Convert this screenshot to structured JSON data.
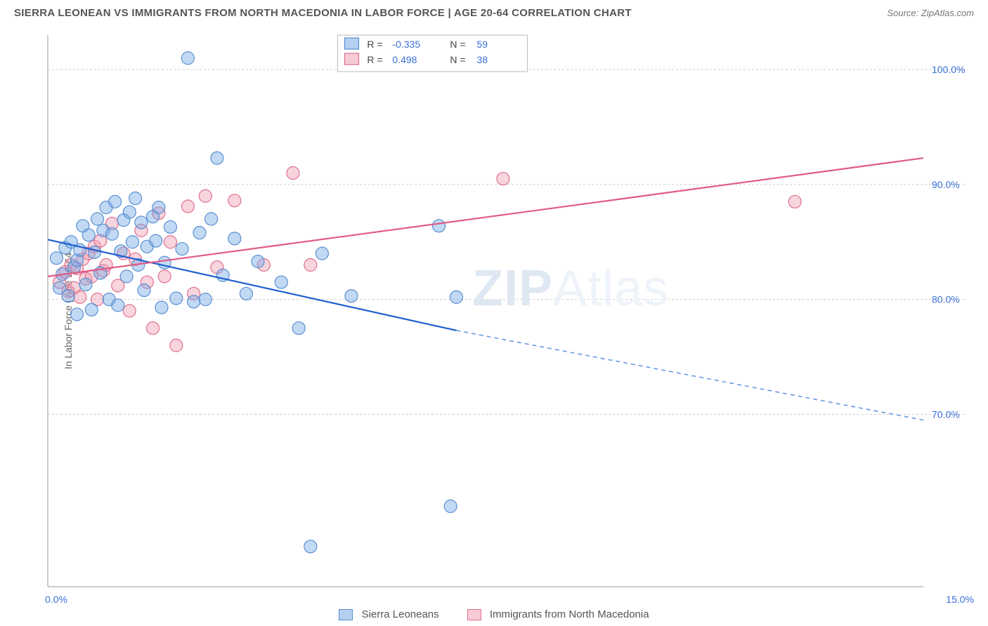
{
  "header": {
    "title": "SIERRA LEONEAN VS IMMIGRANTS FROM NORTH MACEDONIA IN LABOR FORCE | AGE 20-64 CORRELATION CHART",
    "source": "Source: ZipAtlas.com"
  },
  "chart": {
    "type": "scatter",
    "y_axis_label": "In Labor Force | Age 20-64",
    "x_domain": [
      0,
      15
    ],
    "y_domain": [
      55,
      103
    ],
    "x_ticks": [
      "0.0%",
      "15.0%"
    ],
    "y_gridlines": [
      70,
      80,
      90,
      100
    ],
    "y_tick_labels": [
      "70.0%",
      "80.0%",
      "90.0%",
      "100.0%"
    ],
    "background_color": "#ffffff",
    "grid_color": "#cccccc",
    "axis_color": "#999999",
    "tick_color": "#3b6fd6",
    "marker_radius": 9,
    "watermark": {
      "text_bold": "ZIP",
      "text_light": "Atlas",
      "fontsize": 72
    },
    "series": {
      "blue": {
        "label": "Sierra Leoneans",
        "fill": "rgba(120,170,230,0.45)",
        "stroke": "#5a8fd0",
        "R": "-0.335",
        "N": "59",
        "trend": {
          "solid_from": [
            0.0,
            85.2
          ],
          "solid_to": [
            7.0,
            77.3
          ],
          "dash_to": [
            15.0,
            69.5
          ],
          "color": "#1f5fd0"
        },
        "points": [
          [
            0.15,
            83.6
          ],
          [
            0.2,
            81.0
          ],
          [
            0.25,
            82.2
          ],
          [
            0.3,
            84.5
          ],
          [
            0.35,
            80.3
          ],
          [
            0.4,
            85.0
          ],
          [
            0.45,
            82.8
          ],
          [
            0.5,
            83.4
          ],
          [
            0.5,
            78.7
          ],
          [
            0.55,
            84.3
          ],
          [
            0.6,
            86.4
          ],
          [
            0.65,
            81.3
          ],
          [
            0.7,
            85.6
          ],
          [
            0.75,
            79.1
          ],
          [
            0.8,
            84.1
          ],
          [
            0.85,
            87.0
          ],
          [
            0.9,
            82.3
          ],
          [
            0.95,
            86.0
          ],
          [
            1.0,
            88.0
          ],
          [
            1.05,
            80.0
          ],
          [
            1.1,
            85.7
          ],
          [
            1.15,
            88.5
          ],
          [
            1.2,
            79.5
          ],
          [
            1.25,
            84.2
          ],
          [
            1.3,
            86.9
          ],
          [
            1.35,
            82.0
          ],
          [
            1.4,
            87.6
          ],
          [
            1.45,
            85.0
          ],
          [
            1.5,
            88.8
          ],
          [
            1.55,
            83.0
          ],
          [
            1.6,
            86.7
          ],
          [
            1.65,
            80.8
          ],
          [
            1.7,
            84.6
          ],
          [
            1.8,
            87.2
          ],
          [
            1.85,
            85.1
          ],
          [
            1.9,
            88.0
          ],
          [
            1.95,
            79.3
          ],
          [
            2.0,
            83.2
          ],
          [
            2.1,
            86.3
          ],
          [
            2.2,
            80.1
          ],
          [
            2.3,
            84.4
          ],
          [
            2.4,
            101.0
          ],
          [
            2.5,
            79.8
          ],
          [
            2.6,
            85.8
          ],
          [
            2.7,
            80.0
          ],
          [
            2.8,
            87.0
          ],
          [
            2.9,
            92.3
          ],
          [
            3.0,
            82.1
          ],
          [
            3.2,
            85.3
          ],
          [
            3.4,
            80.5
          ],
          [
            3.6,
            83.3
          ],
          [
            4.0,
            81.5
          ],
          [
            4.3,
            77.5
          ],
          [
            4.5,
            58.5
          ],
          [
            4.7,
            84.0
          ],
          [
            5.2,
            80.3
          ],
          [
            6.7,
            86.4
          ],
          [
            7.0,
            80.2
          ],
          [
            6.9,
            62.0
          ]
        ]
      },
      "pink": {
        "label": "Immigrants from North Macedonia",
        "fill": "rgba(240,160,180,0.45)",
        "stroke": "#e06f8f",
        "R": "0.498",
        "N": "38",
        "trend": {
          "from": [
            0.0,
            82.0
          ],
          "to": [
            15.0,
            92.3
          ],
          "color": "#e05a85"
        },
        "points": [
          [
            0.2,
            81.5
          ],
          [
            0.3,
            82.4
          ],
          [
            0.35,
            80.7
          ],
          [
            0.4,
            83.0
          ],
          [
            0.45,
            81.0
          ],
          [
            0.5,
            82.7
          ],
          [
            0.55,
            80.2
          ],
          [
            0.6,
            83.5
          ],
          [
            0.65,
            81.8
          ],
          [
            0.7,
            84.0
          ],
          [
            0.75,
            82.0
          ],
          [
            0.8,
            84.6
          ],
          [
            0.85,
            80.0
          ],
          [
            0.9,
            85.1
          ],
          [
            0.95,
            82.5
          ],
          [
            1.0,
            83.0
          ],
          [
            1.1,
            86.6
          ],
          [
            1.2,
            81.2
          ],
          [
            1.3,
            84.0
          ],
          [
            1.4,
            79.0
          ],
          [
            1.5,
            83.5
          ],
          [
            1.6,
            86.0
          ],
          [
            1.7,
            81.5
          ],
          [
            1.8,
            77.5
          ],
          [
            1.9,
            87.5
          ],
          [
            2.0,
            82.0
          ],
          [
            2.1,
            85.0
          ],
          [
            2.2,
            76.0
          ],
          [
            2.4,
            88.1
          ],
          [
            2.5,
            80.5
          ],
          [
            2.7,
            89.0
          ],
          [
            2.9,
            82.8
          ],
          [
            3.2,
            88.6
          ],
          [
            3.7,
            83.0
          ],
          [
            4.2,
            91.0
          ],
          [
            4.5,
            83.0
          ],
          [
            7.8,
            90.5
          ],
          [
            12.8,
            88.5
          ]
        ]
      }
    },
    "top_legend": {
      "rows": [
        {
          "swatch": "blue",
          "r_label": "R =",
          "r_val": "-0.335",
          "n_label": "N =",
          "n_val": "59"
        },
        {
          "swatch": "pink",
          "r_label": "R =",
          "r_val": "0.498",
          "n_label": "N =",
          "n_val": "38"
        }
      ]
    },
    "bottom_legend": {
      "items": [
        {
          "swatch": "blue",
          "label": "Sierra Leoneans"
        },
        {
          "swatch": "pink",
          "label": "Immigrants from North Macedonia"
        }
      ]
    }
  }
}
